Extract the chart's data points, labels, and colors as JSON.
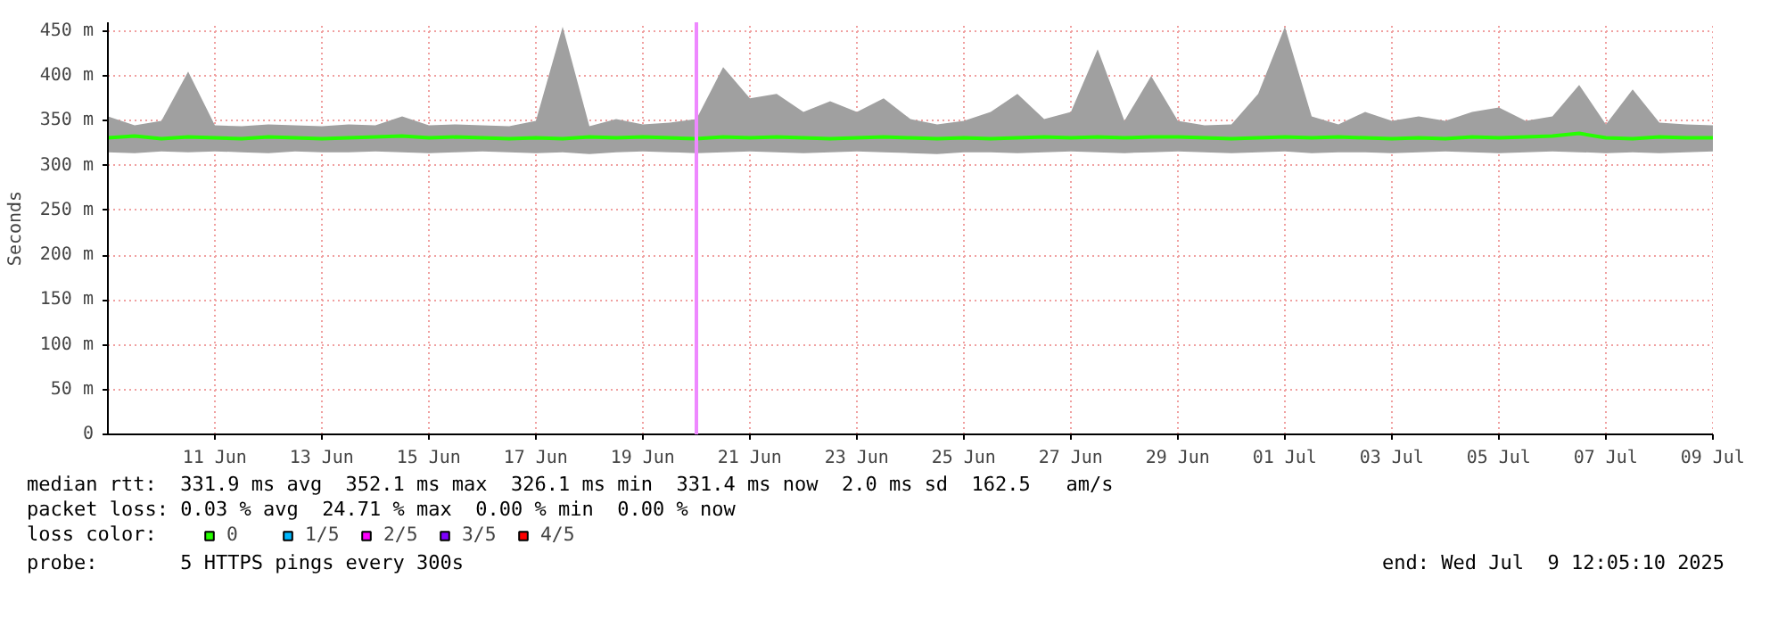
{
  "chart_data": {
    "type": "line",
    "ylabel": "Seconds",
    "x": [
      "2025-06-09T12:05",
      "2025-06-10T00:05",
      "2025-06-10T12:05",
      "2025-06-11T00:05",
      "2025-06-11T12:05",
      "2025-06-12T00:05",
      "2025-06-12T12:05",
      "2025-06-13T00:05",
      "2025-06-13T12:05",
      "2025-06-14T00:05",
      "2025-06-14T12:05",
      "2025-06-15T00:05",
      "2025-06-15T12:05",
      "2025-06-16T00:05",
      "2025-06-16T12:05",
      "2025-06-17T00:05",
      "2025-06-17T12:05",
      "2025-06-18T00:05",
      "2025-06-18T12:05",
      "2025-06-19T00:05",
      "2025-06-19T12:05",
      "2025-06-20T00:05",
      "2025-06-20T12:05",
      "2025-06-21T00:05",
      "2025-06-21T12:05",
      "2025-06-22T00:05",
      "2025-06-22T12:05",
      "2025-06-23T00:05",
      "2025-06-23T12:05",
      "2025-06-24T00:05",
      "2025-06-24T12:05",
      "2025-06-25T00:05",
      "2025-06-25T12:05",
      "2025-06-26T00:05",
      "2025-06-26T12:05",
      "2025-06-27T00:05",
      "2025-06-27T12:05",
      "2025-06-28T00:05",
      "2025-06-28T12:05",
      "2025-06-29T00:05",
      "2025-06-29T12:05",
      "2025-06-30T00:05",
      "2025-06-30T12:05",
      "2025-07-01T00:05",
      "2025-07-01T12:05",
      "2025-07-02T00:05",
      "2025-07-02T12:05",
      "2025-07-03T00:05",
      "2025-07-03T12:05",
      "2025-07-04T00:05",
      "2025-07-04T12:05",
      "2025-07-05T00:05",
      "2025-07-05T12:05",
      "2025-07-06T00:05",
      "2025-07-06T12:05",
      "2025-07-07T00:05",
      "2025-07-07T12:05",
      "2025-07-08T00:05",
      "2025-07-08T12:05",
      "2025-07-09T00:05",
      "2025-07-09T12:05"
    ],
    "series": [
      {
        "name": "0",
        "color": "#26ff00",
        "values": [
          331,
          333,
          330,
          332,
          331,
          330,
          332,
          331,
          330,
          331,
          332,
          333,
          331,
          332,
          331,
          330,
          331,
          330,
          332,
          331,
          332,
          331,
          330,
          332,
          331,
          332,
          331,
          330,
          331,
          332,
          331,
          330,
          331,
          330,
          331,
          332,
          331,
          332,
          331,
          332,
          332,
          331,
          330,
          331,
          332,
          331,
          332,
          331,
          330,
          331,
          330,
          332,
          331,
          332,
          333,
          336,
          331,
          330,
          332,
          331,
          331
        ],
        "lower": [
          315,
          314,
          316,
          315,
          316,
          315,
          314,
          316,
          315,
          315,
          316,
          315,
          314,
          315,
          316,
          315,
          314,
          315,
          313,
          315,
          316,
          315,
          314,
          315,
          316,
          315,
          314,
          315,
          316,
          315,
          314,
          313,
          315,
          315,
          314,
          315,
          316,
          315,
          314,
          315,
          316,
          315,
          314,
          315,
          316,
          314,
          315,
          315,
          314,
          315,
          316,
          315,
          314,
          315,
          316,
          315,
          314,
          315,
          314,
          315,
          316
        ],
        "upper": [
          355,
          345,
          350,
          405,
          345,
          344,
          346,
          345,
          344,
          346,
          345,
          355,
          345,
          346,
          345,
          344,
          350,
          455,
          344,
          352,
          346,
          348,
          352,
          410,
          375,
          380,
          360,
          372,
          360,
          375,
          352,
          346,
          350,
          360,
          380,
          352,
          360,
          430,
          350,
          400,
          350,
          345,
          346,
          380,
          455,
          355,
          346,
          360,
          350,
          355,
          350,
          360,
          365,
          350,
          355,
          390,
          346,
          385,
          348,
          346,
          345
        ]
      },
      {
        "name": "1/5",
        "color": "#00b8ff",
        "values": [
          null,
          null,
          null,
          null,
          null,
          null,
          null,
          null,
          null,
          null,
          null,
          null,
          null,
          null,
          null,
          null,
          null,
          null,
          null,
          null,
          null,
          null,
          null,
          null,
          null,
          null,
          null,
          null,
          null,
          null,
          null,
          null,
          null,
          null,
          null,
          null,
          null,
          null,
          null,
          null,
          null,
          null,
          null,
          null,
          null,
          null,
          null,
          null,
          null,
          null,
          null,
          null,
          null,
          null,
          null,
          null,
          null,
          null,
          null,
          null,
          null
        ]
      },
      {
        "name": "2/5",
        "color": "#ff00ff",
        "values": [
          null,
          null,
          null,
          null,
          null,
          null,
          null,
          null,
          null,
          null,
          null,
          null,
          null,
          null,
          null,
          null,
          null,
          null,
          null,
          null,
          null,
          null,
          null,
          null,
          null,
          null,
          null,
          null,
          null,
          null,
          null,
          null,
          null,
          null,
          null,
          null,
          null,
          null,
          null,
          null,
          null,
          null,
          null,
          null,
          null,
          null,
          null,
          null,
          null,
          null,
          null,
          null,
          null,
          null,
          null,
          null,
          null,
          null,
          null,
          null,
          null
        ]
      },
      {
        "name": "3/5",
        "color": "#7e00ff",
        "values": [
          null,
          null,
          null,
          null,
          null,
          null,
          null,
          null,
          null,
          null,
          null,
          null,
          null,
          null,
          null,
          null,
          null,
          null,
          null,
          null,
          null,
          null,
          null,
          null,
          null,
          null,
          null,
          null,
          null,
          null,
          null,
          null,
          null,
          null,
          null,
          null,
          null,
          null,
          null,
          null,
          null,
          null,
          null,
          null,
          null,
          null,
          null,
          null,
          null,
          null,
          null,
          null,
          null,
          null,
          null,
          null,
          null,
          null,
          null,
          null,
          null
        ]
      },
      {
        "name": "4/5",
        "color": "#ff0000",
        "values": [
          null,
          null,
          null,
          null,
          null,
          null,
          null,
          null,
          null,
          null,
          null,
          null,
          null,
          null,
          null,
          null,
          null,
          null,
          null,
          null,
          null,
          null,
          null,
          null,
          null,
          null,
          null,
          null,
          null,
          null,
          null,
          null,
          null,
          null,
          null,
          null,
          null,
          null,
          null,
          null,
          null,
          null,
          null,
          null,
          null,
          null,
          null,
          null,
          null,
          null,
          null,
          null,
          null,
          null,
          null,
          null,
          null,
          null,
          null,
          null,
          null
        ]
      }
    ],
    "legend_title": "loss color:",
    "legend": "bottom",
    "ref_lines": [
      {
        "axis": "x",
        "value": "2025-06-20T12:05",
        "color": "#ee88ff"
      }
    ],
    "xlim": [
      "2025-06-09T12:05",
      "2025-07-09T12:05"
    ],
    "xticks": [
      {
        "value": "2025-06-11T12:00",
        "label": "11 Jun"
      },
      {
        "value": "2025-06-13T12:00",
        "label": "13 Jun"
      },
      {
        "value": "2025-06-15T12:00",
        "label": "15 Jun"
      },
      {
        "value": "2025-06-17T12:00",
        "label": "17 Jun"
      },
      {
        "value": "2025-06-19T12:00",
        "label": "19 Jun"
      },
      {
        "value": "2025-06-21T12:00",
        "label": "21 Jun"
      },
      {
        "value": "2025-06-23T12:00",
        "label": "23 Jun"
      },
      {
        "value": "2025-06-25T12:00",
        "label": "25 Jun"
      },
      {
        "value": "2025-06-27T12:00",
        "label": "27 Jun"
      },
      {
        "value": "2025-06-29T12:00",
        "label": "29 Jun"
      },
      {
        "value": "2025-07-01T12:00",
        "label": "01 Jul"
      },
      {
        "value": "2025-07-03T12:00",
        "label": "03 Jul"
      },
      {
        "value": "2025-07-05T12:00",
        "label": "05 Jul"
      },
      {
        "value": "2025-07-07T12:00",
        "label": "07 Jul"
      },
      {
        "value": "2025-07-09T12:00",
        "label": "09 Jul"
      }
    ],
    "ylim": [
      0,
      460
    ],
    "yticks": [
      0,
      {
        "value": 50,
        "label": "50 m"
      },
      {
        "value": 100,
        "label": "100 m"
      },
      {
        "value": 150,
        "label": "150 m"
      },
      {
        "value": 200,
        "label": "200 m"
      },
      {
        "value": 250,
        "label": "250 m"
      },
      {
        "value": 300,
        "label": "300 m"
      },
      {
        "value": 350,
        "label": "350 m"
      },
      {
        "value": 400,
        "label": "400 m"
      },
      {
        "value": 450,
        "label": "450 m"
      }
    ],
    "grid": true,
    "annotations": [
      "median rtt:  331.9 ms avg  352.1 ms max  326.1 ms min  331.4 ms now  2.0 ms sd  162.5   am/s",
      "packet loss: 0.03 % avg  24.71 % max  0.00 % min  0.00 % now",
      "probe:       5 HTTPS pings every 300s",
      "end: Wed Jul  9 12:05:10 2025"
    ]
  }
}
